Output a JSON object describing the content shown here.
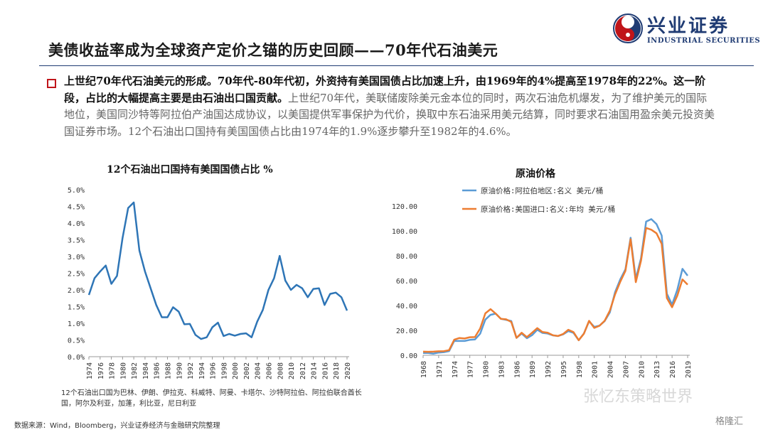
{
  "header": {
    "title": "美债收益率成为全球资产定价之锚的历史回顾——70年代石油美元",
    "logo_cn": "兴业证券",
    "logo_en": "INDUSTRIAL SECURITIES",
    "accent": "#1f3b73",
    "logo_red": "#c0151a"
  },
  "paragraph": {
    "bold": "上世纪70年代石油美元的形成。70年代-80年代初，外资持有美国国债占比加速上升，由1969年的4%提高至1978年的22%。这一阶段，占比的大幅提高主要是由石油出口国贡献。",
    "normal": "上世纪70年代，美联储废除美元金本位的同时，两次石油危机爆发，为了维护美元的国际地位，美国同沙特等阿拉伯产油国达成协议，以美国提供军事保护为代价，换取中东石油采用美元结算，同时要求石油国用盈余美元投资美国证券市场。12个石油出口国持有美国国债占比由1974年的1.9%逐步攀升至1982年的4.6%。"
  },
  "footnote": "12个石油出口国为巴林、伊朗、伊拉克、科威特、阿曼、卡塔尔、沙特阿拉伯、阿拉伯联合酋长国，阿尔及利亚，加蓬，利比亚，尼日利亚",
  "source": "数据来源：Wind，Bloomberg，兴业证券经济与金融研究院整理",
  "watermark": "张忆东策略世界",
  "brand": "格隆汇",
  "chart_data": [
    {
      "type": "line",
      "title": "12个石油出口国持有美国国债占比 %",
      "color": "#2e75b6",
      "ylim": [
        0,
        5
      ],
      "yticks": [
        "0.0%",
        "0.5%",
        "1.0%",
        "1.5%",
        "2.0%",
        "2.5%",
        "3.0%",
        "3.5%",
        "4.0%",
        "4.5%",
        "5.0%"
      ],
      "xticks": [
        "1974",
        "1976",
        "1978",
        "1980",
        "1982",
        "1984",
        "1986",
        "1988",
        "1990",
        "1992",
        "1994",
        "1996",
        "1998",
        "2000",
        "2002",
        "2004",
        "2006",
        "2008",
        "2010",
        "2012",
        "2014",
        "2016",
        "2018",
        "2020"
      ],
      "x": [
        1974,
        1975,
        1976,
        1977,
        1978,
        1979,
        1980,
        1981,
        1982,
        1983,
        1984,
        1985,
        1986,
        1987,
        1988,
        1989,
        1990,
        1991,
        1992,
        1993,
        1994,
        1995,
        1996,
        1997,
        1998,
        1999,
        2000,
        2001,
        2002,
        2003,
        2004,
        2005,
        2006,
        2007,
        2008,
        2009,
        2010,
        2011,
        2012,
        2013,
        2014,
        2015,
        2016,
        2017,
        2018,
        2019,
        2020
      ],
      "values": [
        1.85,
        2.35,
        2.55,
        2.73,
        2.18,
        2.42,
        3.55,
        4.45,
        4.62,
        3.18,
        2.55,
        2.05,
        1.55,
        1.18,
        1.18,
        1.48,
        1.35,
        0.97,
        0.98,
        0.65,
        0.53,
        0.58,
        0.88,
        1.02,
        0.62,
        0.68,
        0.63,
        0.68,
        0.7,
        0.58,
        1.05,
        1.4,
        2.0,
        2.35,
        3.02,
        2.28,
        2.0,
        2.15,
        2.05,
        1.78,
        2.03,
        2.05,
        1.55,
        1.88,
        1.92,
        1.78,
        1.38
      ]
    },
    {
      "type": "line",
      "title": "原油价格",
      "ylim": [
        0,
        120
      ],
      "yticks": [
        "0.00",
        "20.00",
        "40.00",
        "60.00",
        "80.00",
        "100.00",
        "120.00"
      ],
      "xticks": [
        "1968",
        "1971",
        "1974",
        "1977",
        "1980",
        "1983",
        "1986",
        "1989",
        "1992",
        "1995",
        "1998",
        "2001",
        "2004",
        "2007",
        "2010",
        "2013",
        "2016",
        "2019"
      ],
      "x": [
        1968,
        1969,
        1970,
        1971,
        1972,
        1973,
        1974,
        1975,
        1976,
        1977,
        1978,
        1979,
        1980,
        1981,
        1982,
        1983,
        1984,
        1985,
        1986,
        1987,
        1988,
        1989,
        1990,
        1991,
        1992,
        1993,
        1994,
        1995,
        1996,
        1997,
        1998,
        1999,
        2000,
        2001,
        2002,
        2003,
        2004,
        2005,
        2006,
        2007,
        2008,
        2009,
        2010,
        2011,
        2012,
        2013,
        2014,
        2015,
        2016,
        2017,
        2018,
        2019
      ],
      "series": [
        {
          "name": "原油价格:阿拉伯地区:名义 美元/桶",
          "color": "#5b9bd5",
          "values": [
            1.8,
            1.8,
            1.3,
            2.2,
            2.5,
            3.3,
            11.6,
            11.5,
            11.5,
            12.4,
            12.7,
            17.3,
            28.7,
            32.5,
            33.5,
            29.3,
            28.5,
            27.5,
            14.0,
            17.5,
            13.7,
            16.2,
            20.5,
            18.0,
            17.5,
            16.0,
            15.5,
            16.8,
            19.5,
            18.0,
            12.1,
            17.5,
            27.4,
            22.8,
            23.8,
            27.5,
            34.5,
            50.6,
            61.0,
            69.1,
            94.5,
            61.5,
            78.0,
            107.5,
            109.5,
            105.5,
            96.3,
            49.5,
            40.7,
            52.5,
            69.5,
            64.0
          ]
        },
        {
          "name": "原油价格:美国进口:名义:年均 美元/桶",
          "color": "#ed7d31",
          "values": [
            2.9,
            2.8,
            2.9,
            3.2,
            3.3,
            4.1,
            12.5,
            13.9,
            13.5,
            14.5,
            14.6,
            21.5,
            33.7,
            37.1,
            33.5,
            29.3,
            28.9,
            26.8,
            14.0,
            18.1,
            14.6,
            18.1,
            21.8,
            18.7,
            18.2,
            16.1,
            15.5,
            17.1,
            20.5,
            18.6,
            12.1,
            17.3,
            27.7,
            22.0,
            23.7,
            27.7,
            35.9,
            48.9,
            59.1,
            67.9,
            93.3,
            58.8,
            76.0,
            102.4,
            101.0,
            98.1,
            89.6,
            46.0,
            38.6,
            47.9,
            61.0,
            56.8
          ]
        }
      ]
    }
  ]
}
